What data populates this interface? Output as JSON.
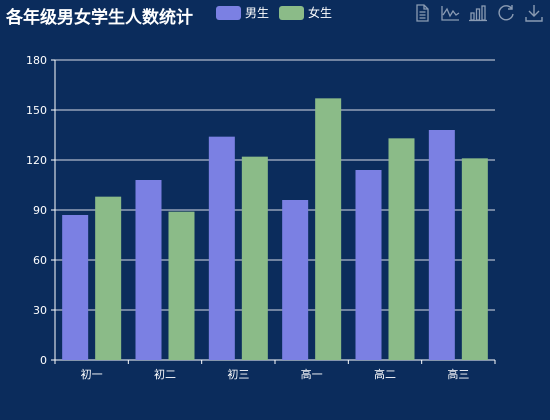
{
  "chart_data": {
    "type": "bar",
    "title": "各年级男女学生人数统计",
    "categories": [
      "初一",
      "初二",
      "初三",
      "高一",
      "高二",
      "高三"
    ],
    "series": [
      {
        "name": "男生",
        "color": "#7b80e3",
        "values": [
          87,
          108,
          134,
          96,
          114,
          138
        ]
      },
      {
        "name": "女生",
        "color": "#8bbb88",
        "values": [
          98,
          89,
          122,
          157,
          133,
          121
        ]
      }
    ],
    "ylim": [
      0,
      180
    ],
    "yticks": [
      0,
      30,
      60,
      90,
      120,
      150,
      180
    ],
    "grid": true,
    "legend_position": "top"
  },
  "toolbox": {
    "icons": [
      "data-view-icon",
      "line-chart-icon",
      "bar-chart-icon",
      "restore-icon",
      "download-icon"
    ],
    "color": "#8a9bb3"
  }
}
